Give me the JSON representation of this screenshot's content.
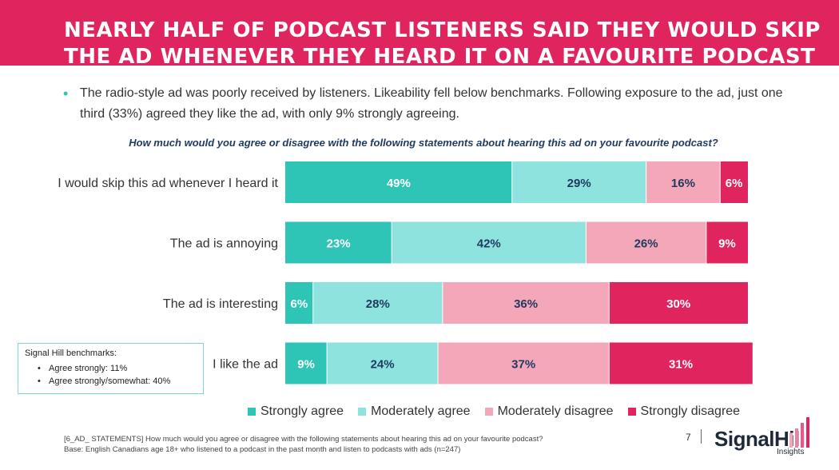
{
  "header": {
    "title_line1": "NEARLY HALF OF PODCAST LISTENERS SAID THEY WOULD SKIP",
    "title_line2": "THE AD WHENEVER THEY HEARD IT ON A FAVOURITE PODCAST",
    "band_color": "#e0245e"
  },
  "bullet": {
    "text": "The radio-style ad was poorly received by listeners. Likeability fell below benchmarks. Following exposure to the ad, just one third (33%) agreed they like the ad, with only 9% strongly agreeing."
  },
  "question": "How much would you agree or disagree with the following statements about hearing this ad on your favourite podcast?",
  "chart_data": {
    "type": "bar",
    "orientation": "horizontal",
    "stacked": true,
    "categories": [
      "I would skip this ad whenever I heard it",
      "The ad is annoying",
      "The ad is interesting",
      "I like the ad"
    ],
    "series": [
      {
        "name": "Strongly agree",
        "color": "#2ec4b6",
        "text_color": "#ffffff",
        "values": [
          49,
          23,
          6,
          9
        ],
        "labels": [
          "49%",
          "23%",
          "6%",
          "9%"
        ]
      },
      {
        "name": "Moderately agree",
        "color": "#8ee3de",
        "text_color": "#1f3a5f",
        "values": [
          29,
          42,
          28,
          24
        ],
        "labels": [
          "29%",
          "42%",
          "28%",
          "24%"
        ]
      },
      {
        "name": "Moderately disagree",
        "color": "#f4a7b9",
        "text_color": "#1f3a5f",
        "values": [
          16,
          26,
          36,
          37
        ],
        "labels": [
          "16%",
          "26%",
          "36%",
          "37%"
        ]
      },
      {
        "name": "Strongly disagree",
        "color": "#e0245e",
        "text_color": "#ffffff",
        "values": [
          6,
          9,
          30,
          31
        ],
        "labels": [
          "6%",
          "9%",
          "30%",
          "31%"
        ]
      }
    ],
    "xlim": [
      0,
      100
    ],
    "legend_position": "bottom",
    "grid": false
  },
  "benchmarks": {
    "title": "Signal Hill benchmarks:",
    "items": [
      "Agree strongly: 11%",
      "Agree strongly/somewhat: 40%"
    ]
  },
  "footnote": {
    "line1": "[6_AD_ STATEMENTS] How much would you agree or disagree with the following statements about hearing this ad on your favourite podcast?",
    "line2": "Base: English Canadians  age 18+ who listened to a podcast in the past month and listen to podcasts with ads (n=247)"
  },
  "page_number": "7",
  "logo": {
    "word": "SignalHill",
    "sub": "Insights",
    "icon": "signal-bars-icon"
  }
}
